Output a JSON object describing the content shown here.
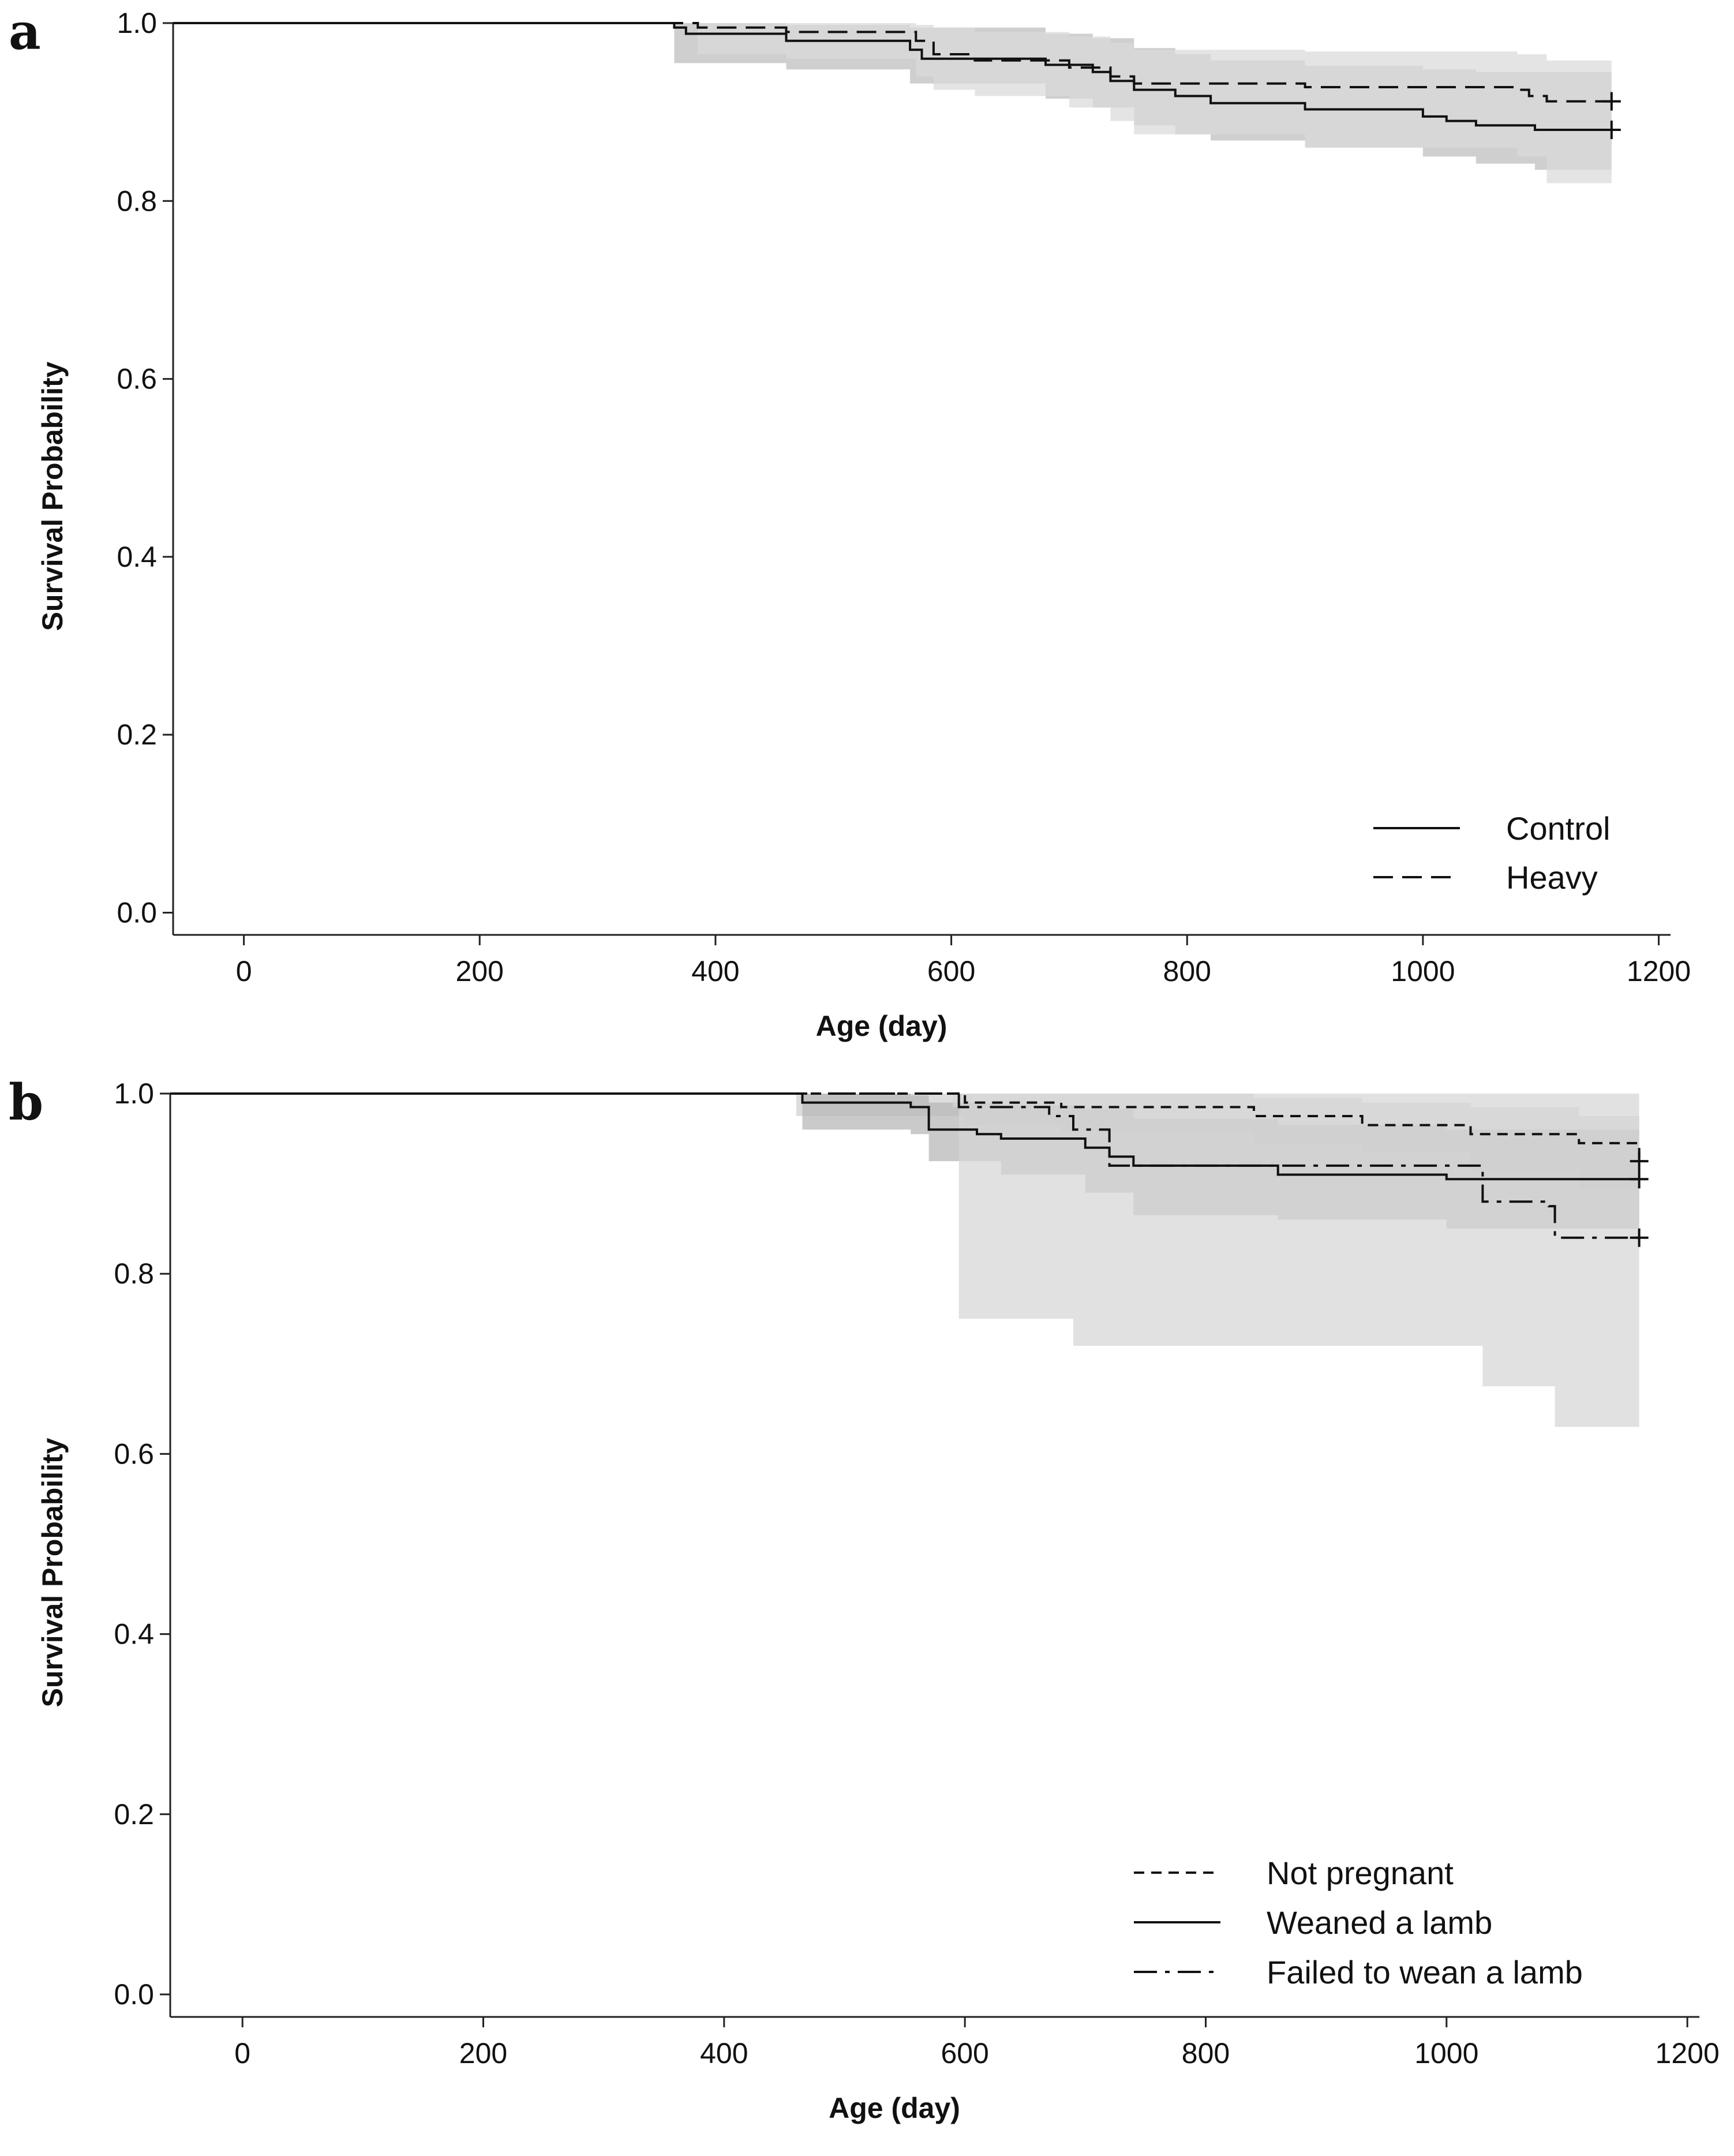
{
  "figure": {
    "panels": [
      "a",
      "b"
    ]
  },
  "chart_data": [
    {
      "panel": "a",
      "type": "line",
      "subtype": "kaplan-meier",
      "title": "",
      "xlabel": "Age (day)",
      "ylabel": "Survival Probability",
      "xlim": [
        -60,
        1210
      ],
      "ylim": [
        -0.025,
        1.0
      ],
      "x_ticks": [
        0,
        200,
        400,
        600,
        800,
        1000,
        1200
      ],
      "y_ticks": [
        0.0,
        0.2,
        0.4,
        0.6,
        0.8,
        1.0
      ],
      "x_tick_labels": [
        "0",
        "200",
        "400",
        "600",
        "800",
        "1000",
        "1200"
      ],
      "y_tick_labels": [
        "0.0",
        "0.2",
        "0.4",
        "0.6",
        "0.8",
        "1.0"
      ],
      "legend_position": "bottom-right",
      "series": [
        {
          "name": "Control",
          "dash": "solid",
          "points": [
            [
              -60,
              1.0
            ],
            [
              360,
              1.0
            ],
            [
              365,
              0.995
            ],
            [
              375,
              0.988
            ],
            [
              460,
              0.98
            ],
            [
              565,
              0.97
            ],
            [
              575,
              0.96
            ],
            [
              680,
              0.953
            ],
            [
              720,
              0.945
            ],
            [
              735,
              0.935
            ],
            [
              755,
              0.925
            ],
            [
              790,
              0.918
            ],
            [
              820,
              0.91
            ],
            [
              900,
              0.903
            ],
            [
              1000,
              0.895
            ],
            [
              1020,
              0.89
            ],
            [
              1045,
              0.885
            ],
            [
              1095,
              0.88
            ],
            [
              1160,
              0.88
            ]
          ],
          "censor_x": [
            1160
          ],
          "ci": [
            [
              365,
              0.955,
              1.0
            ],
            [
              460,
              0.948,
              0.998
            ],
            [
              565,
              0.932,
              0.995
            ],
            [
              680,
              0.915,
              0.988
            ],
            [
              720,
              0.905,
              0.983
            ],
            [
              755,
              0.885,
              0.972
            ],
            [
              790,
              0.875,
              0.965
            ],
            [
              820,
              0.868,
              0.958
            ],
            [
              900,
              0.86,
              0.952
            ],
            [
              1000,
              0.85,
              0.948
            ],
            [
              1045,
              0.842,
              0.945
            ],
            [
              1095,
              0.835,
              0.945
            ],
            [
              1160,
              0.835,
              0.945
            ]
          ],
          "ci_color": "#bdbdbd"
        },
        {
          "name": "Heavy",
          "dash": "longdash",
          "points": [
            [
              -60,
              1.0
            ],
            [
              375,
              1.0
            ],
            [
              385,
              0.995
            ],
            [
              460,
              0.99
            ],
            [
              570,
              0.98
            ],
            [
              585,
              0.965
            ],
            [
              620,
              0.958
            ],
            [
              700,
              0.95
            ],
            [
              735,
              0.94
            ],
            [
              755,
              0.932
            ],
            [
              900,
              0.928
            ],
            [
              1080,
              0.925
            ],
            [
              1090,
              0.918
            ],
            [
              1105,
              0.912
            ],
            [
              1160,
              0.912
            ]
          ],
          "censor_x": [
            1160
          ],
          "ci": [
            [
              385,
              0.965,
              1.0
            ],
            [
              460,
              0.96,
              1.0
            ],
            [
              570,
              0.94,
              0.998
            ],
            [
              585,
              0.925,
              0.995
            ],
            [
              620,
              0.918,
              0.99
            ],
            [
              700,
              0.905,
              0.985
            ],
            [
              735,
              0.89,
              0.978
            ],
            [
              755,
              0.875,
              0.97
            ],
            [
              900,
              0.86,
              0.968
            ],
            [
              1080,
              0.85,
              0.965
            ],
            [
              1105,
              0.82,
              0.958
            ],
            [
              1160,
              0.815,
              0.958
            ]
          ],
          "ci_color": "#d9d9d9"
        }
      ],
      "ci_overlap_color": "#a6a6a6"
    },
    {
      "panel": "b",
      "type": "line",
      "subtype": "kaplan-meier",
      "title": "",
      "xlabel": "Age (day)",
      "ylabel": "Survival Probability",
      "xlim": [
        -60,
        1210
      ],
      "ylim": [
        -0.025,
        1.0
      ],
      "x_ticks": [
        0,
        200,
        400,
        600,
        800,
        1000,
        1200
      ],
      "y_ticks": [
        0.0,
        0.2,
        0.4,
        0.6,
        0.8,
        1.0
      ],
      "x_tick_labels": [
        "0",
        "200",
        "400",
        "600",
        "800",
        "1000",
        "1200"
      ],
      "y_tick_labels": [
        "0.0",
        "0.2",
        "0.4",
        "0.6",
        "0.8",
        "1.0"
      ],
      "legend_position": "bottom-right",
      "series": [
        {
          "name": "Not pregnant",
          "dash": "shortdash",
          "points": [
            [
              -60,
              1.0
            ],
            [
              460,
              1.0
            ],
            [
              600,
              0.99
            ],
            [
              680,
              0.985
            ],
            [
              840,
              0.975
            ],
            [
              930,
              0.965
            ],
            [
              1020,
              0.955
            ],
            [
              1110,
              0.945
            ],
            [
              1160,
              0.925
            ]
          ],
          "censor_x": [
            1160
          ],
          "ci": [
            [
              460,
              0.975,
              1.0
            ],
            [
              600,
              0.965,
              1.0
            ],
            [
              680,
              0.958,
              1.0
            ],
            [
              840,
              0.945,
              0.995
            ],
            [
              930,
              0.935,
              0.99
            ],
            [
              1020,
              0.915,
              0.985
            ],
            [
              1110,
              0.895,
              0.975
            ],
            [
              1160,
              0.88,
              0.965
            ]
          ],
          "ci_color": "#d0d0d0"
        },
        {
          "name": "Weaned a lamb",
          "dash": "solid",
          "points": [
            [
              -60,
              1.0
            ],
            [
              460,
              1.0
            ],
            [
              465,
              0.99
            ],
            [
              555,
              0.985
            ],
            [
              570,
              0.96
            ],
            [
              610,
              0.955
            ],
            [
              630,
              0.95
            ],
            [
              700,
              0.94
            ],
            [
              720,
              0.93
            ],
            [
              740,
              0.92
            ],
            [
              860,
              0.91
            ],
            [
              1000,
              0.905
            ],
            [
              1160,
              0.905
            ]
          ],
          "censor_x": [
            1160
          ],
          "ci": [
            [
              465,
              0.96,
              1.0
            ],
            [
              555,
              0.955,
              0.998
            ],
            [
              570,
              0.925,
              0.99
            ],
            [
              630,
              0.91,
              0.987
            ],
            [
              700,
              0.89,
              0.983
            ],
            [
              740,
              0.865,
              0.972
            ],
            [
              860,
              0.86,
              0.965
            ],
            [
              1000,
              0.85,
              0.96
            ],
            [
              1160,
              0.845,
              0.96
            ]
          ],
          "ci_color": "#b5b5b5"
        },
        {
          "name": "Failed to wean a lamb",
          "dash": "dashdot",
          "points": [
            [
              -60,
              1.0
            ],
            [
              590,
              1.0
            ],
            [
              595,
              0.985
            ],
            [
              670,
              0.975
            ],
            [
              690,
              0.96
            ],
            [
              720,
              0.92
            ],
            [
              1020,
              0.92
            ],
            [
              1030,
              0.88
            ],
            [
              1085,
              0.875
            ],
            [
              1090,
              0.84
            ],
            [
              1160,
              0.84
            ]
          ],
          "censor_x": [
            1160
          ],
          "ci": [
            [
              590,
              0.985,
              1.0
            ],
            [
              595,
              0.75,
              1.0
            ],
            [
              690,
              0.72,
              1.0
            ],
            [
              1020,
              0.72,
              1.0
            ],
            [
              1030,
              0.675,
              1.0
            ],
            [
              1090,
              0.63,
              1.0
            ],
            [
              1160,
              0.63,
              1.0
            ]
          ],
          "ci_color": "#d6d6d6"
        }
      ],
      "ci_overlap_color": "#a6a6a6"
    }
  ]
}
